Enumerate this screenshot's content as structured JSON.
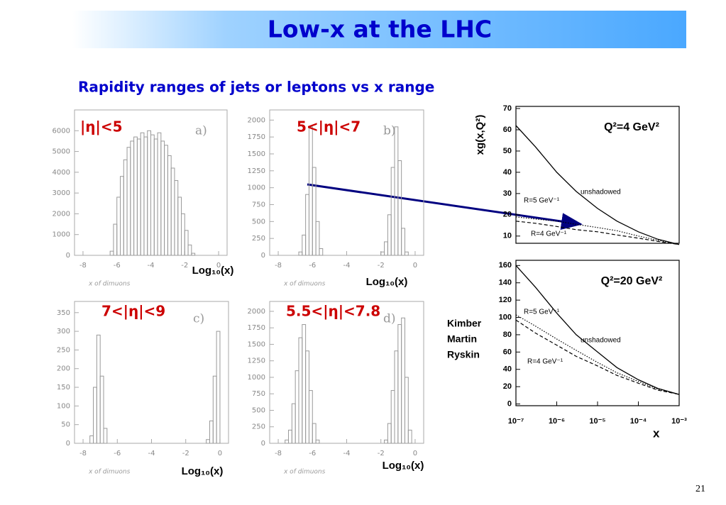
{
  "title": "Low-x at the LHC",
  "subtitle": "Rapidity ranges of jets or leptons vs x range",
  "attribution": [
    "Kimber",
    "Martin",
    "Ryskin"
  ],
  "page_number": "21",
  "chart_data": [
    {
      "type": "histogram",
      "label": "|η|<5",
      "panel": "a)",
      "xlabel": "x of dimuons",
      "annotation": "Log₁₀(x)",
      "color": "#999999",
      "bins": [
        -6.6,
        -6.4,
        -6.2,
        -6.0,
        -5.8,
        -5.6,
        -5.4,
        -5.2,
        -5.0,
        -4.8,
        -4.6,
        -4.4,
        -4.2,
        -4.0,
        -3.8,
        -3.6,
        -3.4,
        -3.2,
        -3.0,
        -2.8,
        -2.6,
        -2.4,
        -2.2,
        -2.0,
        -1.8,
        -1.6,
        -1.4
      ],
      "values": [
        0,
        200,
        1500,
        2800,
        3800,
        4600,
        5200,
        5500,
        5700,
        5600,
        5900,
        5700,
        6000,
        5800,
        5600,
        5900,
        5500,
        5300,
        4800,
        4200,
        3600,
        2800,
        2000,
        1200,
        500,
        100
      ],
      "xlim": [
        -8.5,
        0.5
      ],
      "xticks": [
        -8,
        -6,
        -4,
        -2,
        0
      ],
      "ylim": [
        0,
        7000
      ],
      "yticks": [
        0,
        1000,
        2000,
        3000,
        4000,
        5000,
        6000
      ]
    },
    {
      "type": "histogram",
      "label": "5<|η|<7",
      "panel": "b)",
      "xlabel": "x of dimuons",
      "annotation": "Log₁₀(x)",
      "color": "#999999",
      "bins": [
        -7.0,
        -6.8,
        -6.6,
        -6.4,
        -6.2,
        -6.0,
        -5.8,
        -5.6,
        -5.4,
        -5.2,
        -5.0,
        -4.8,
        -4.6,
        -4.4,
        -4.2,
        -4.0,
        -3.8,
        -3.6,
        -3.4,
        -3.2,
        -3.0,
        -2.8,
        -2.6,
        -2.4,
        -2.2,
        -2.0,
        -1.8,
        -1.6,
        -1.4,
        -1.2,
        -1.0,
        -0.8,
        -0.6,
        -0.4,
        -0.2,
        0
      ],
      "values": [
        0,
        50,
        300,
        900,
        1900,
        1300,
        500,
        100,
        0,
        0,
        0,
        0,
        0,
        0,
        0,
        0,
        0,
        0,
        0,
        0,
        0,
        0,
        0,
        0,
        0,
        50,
        200,
        600,
        1300,
        1900,
        1400,
        400,
        50,
        0,
        0
      ],
      "xlim": [
        -8.5,
        0.5
      ],
      "xticks": [
        -8,
        -6,
        -4,
        -2,
        0
      ],
      "ylim": [
        0,
        2150
      ],
      "yticks": [
        0,
        250,
        500,
        750,
        1000,
        1250,
        1500,
        1750,
        2000
      ]
    },
    {
      "type": "histogram",
      "label": "7<|η|<9",
      "panel": "c)",
      "xlabel": "x of dimuons",
      "annotation": "Log₁₀(x)",
      "color": "#999999",
      "bins": [
        -8.0,
        -7.8,
        -7.6,
        -7.4,
        -7.2,
        -7.0,
        -6.8,
        -6.6,
        -6.4,
        -6.2,
        -6.0,
        -5.8,
        -5.6,
        -5.4,
        -5.2,
        -5.0,
        -4.8,
        -4.6,
        -4.4,
        -4.2,
        -4.0,
        -3.8,
        -3.6,
        -3.4,
        -3.2,
        -3.0,
        -2.8,
        -2.6,
        -2.4,
        -2.2,
        -2.0,
        -1.8,
        -1.6,
        -1.4,
        -1.2,
        -1.0,
        -0.8,
        -0.6,
        -0.4,
        -0.2,
        0
      ],
      "values": [
        0,
        0,
        20,
        150,
        290,
        180,
        40,
        0,
        0,
        0,
        0,
        0,
        0,
        0,
        0,
        0,
        0,
        0,
        0,
        0,
        0,
        0,
        0,
        0,
        0,
        0,
        0,
        0,
        0,
        0,
        0,
        0,
        0,
        0,
        0,
        0,
        10,
        60,
        180,
        300
      ],
      "xlim": [
        -8.5,
        0.5
      ],
      "xticks": [
        -8,
        -6,
        -4,
        -2,
        0
      ],
      "ylim": [
        0,
        380
      ],
      "yticks": [
        0,
        50,
        100,
        150,
        200,
        250,
        300,
        350
      ]
    },
    {
      "type": "histogram",
      "label": "5.5<|η|<7.8",
      "panel": "d)",
      "xlabel": "x of dimuons",
      "annotation": "Log₁₀(x)",
      "color": "#999999",
      "bins": [
        -8.0,
        -7.8,
        -7.6,
        -7.4,
        -7.2,
        -7.0,
        -6.8,
        -6.6,
        -6.4,
        -6.2,
        -6.0,
        -5.8,
        -5.6,
        -5.4,
        -5.2,
        -5.0,
        -4.8,
        -4.6,
        -4.4,
        -4.2,
        -4.0,
        -3.8,
        -3.6,
        -3.4,
        -3.2,
        -3.0,
        -2.8,
        -2.6,
        -2.4,
        -2.2,
        -2.0,
        -1.8,
        -1.6,
        -1.4,
        -1.2,
        -1.0,
        -0.8,
        -0.6,
        -0.4,
        -0.2,
        0
      ],
      "values": [
        0,
        0,
        50,
        200,
        600,
        1100,
        1600,
        1800,
        1400,
        800,
        300,
        50,
        0,
        0,
        0,
        0,
        0,
        0,
        0,
        0,
        0,
        0,
        0,
        0,
        0,
        0,
        0,
        0,
        0,
        0,
        0,
        50,
        300,
        800,
        1400,
        1800,
        1900,
        1000,
        200,
        0
      ],
      "xlim": [
        -8.5,
        0.5
      ],
      "xticks": [
        -8,
        -6,
        -4,
        -2,
        0
      ],
      "ylim": [
        0,
        2150
      ],
      "yticks": [
        0,
        250,
        500,
        750,
        1000,
        1250,
        1500,
        1750,
        2000
      ]
    },
    {
      "type": "line",
      "annotation": "Q²=4 GeV²",
      "ylabel": "xg(x,Q²)",
      "log_x": true,
      "x": [
        1e-07,
        3e-07,
        1e-06,
        3e-06,
        1e-05,
        3e-05,
        0.0001,
        0.0003,
        0.001
      ],
      "series": [
        {
          "name": "unshadowed",
          "color": "#000000",
          "style": "solid",
          "values": [
            62,
            52,
            40,
            31,
            23,
            17,
            12,
            8.5,
            6
          ]
        },
        {
          "name": "R=5 GeV⁻¹",
          "color": "#000000",
          "style": "dotted",
          "values": [
            19,
            18,
            17,
            15.5,
            14,
            12.5,
            10,
            8,
            6
          ]
        },
        {
          "name": "R=4 GeV⁻¹",
          "color": "#000000",
          "style": "dashed",
          "values": [
            17,
            16,
            14.5,
            13,
            12,
            10.5,
            9,
            7.5,
            6
          ]
        }
      ],
      "xlim": [
        1e-07,
        0.001
      ],
      "ylim": [
        6.6,
        71
      ],
      "yticks": [
        10,
        20,
        30,
        40,
        50,
        60,
        70
      ]
    },
    {
      "type": "line",
      "annotation": "Q²=20 GeV²",
      "xlabel": "x",
      "log_x": true,
      "x": [
        1e-07,
        3e-07,
        1e-06,
        3e-06,
        1e-05,
        3e-05,
        0.0001,
        0.0003,
        0.001
      ],
      "series": [
        {
          "name": "unshadowed",
          "color": "#000000",
          "style": "solid",
          "values": [
            160,
            135,
            105,
            80,
            60,
            42,
            28,
            18,
            11
          ]
        },
        {
          "name": "R=5 GeV⁻¹",
          "color": "#000000",
          "style": "dotted",
          "values": [
            103,
            90,
            75,
            62,
            48,
            36,
            26,
            17,
            11
          ]
        },
        {
          "name": "R=4 GeV⁻¹",
          "color": "#000000",
          "style": "dashed",
          "values": [
            97,
            82,
            68,
            55,
            44,
            33,
            24,
            16,
            11
          ]
        }
      ],
      "xlim": [
        1e-07,
        0.001
      ],
      "ylim": [
        -2,
        166
      ],
      "yticks": [
        0,
        20,
        40,
        60,
        80,
        100,
        120,
        140,
        160
      ],
      "xticks": [
        {
          "value": 1e-07,
          "label": "10⁻⁷"
        },
        {
          "value": 1e-06,
          "label": "10⁻⁶"
        },
        {
          "value": 1e-05,
          "label": "10⁻⁵"
        },
        {
          "value": 0.0001,
          "label": "10⁻⁴"
        },
        {
          "value": 0.001,
          "label": "10⁻³"
        }
      ]
    }
  ]
}
